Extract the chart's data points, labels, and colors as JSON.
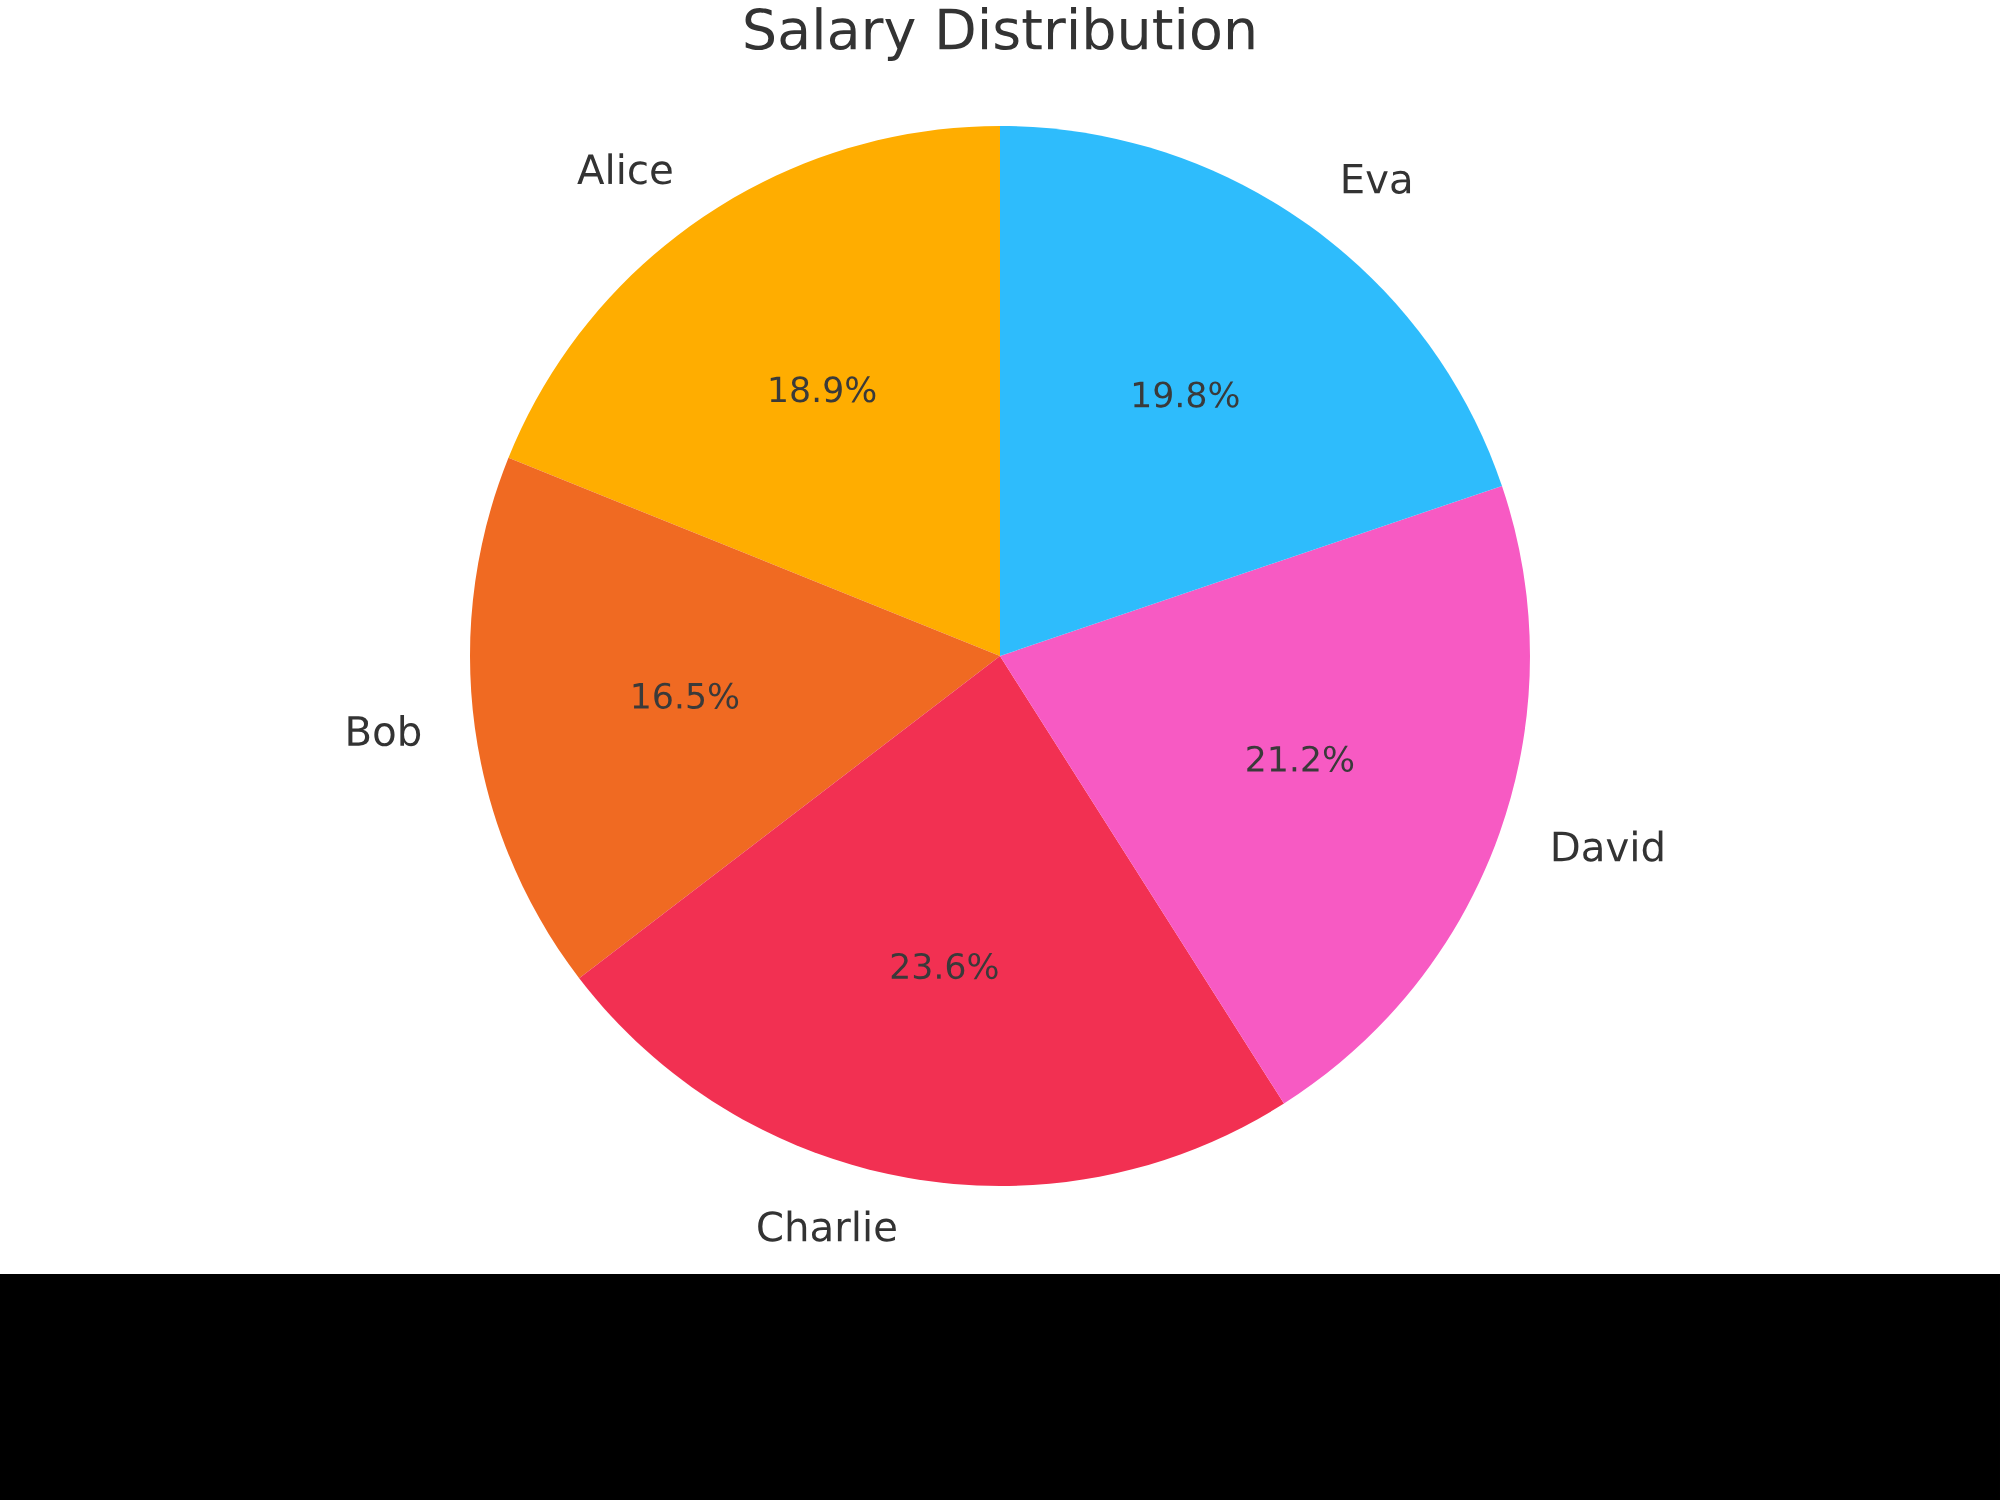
{
  "chart_data": {
    "type": "pie",
    "title": "Salary Distribution",
    "categories": [
      "Alice",
      "Bob",
      "Charlie",
      "David",
      "Eva"
    ],
    "values": [
      18.9,
      16.5,
      23.6,
      21.2,
      19.8
    ],
    "colors": [
      "#ffad00",
      "#f06a22",
      "#f23052",
      "#f75ac3",
      "#2ebcfc"
    ],
    "value_labels": [
      "18.9%",
      "16.5%",
      "23.6%",
      "21.2%",
      "19.8%"
    ]
  }
}
